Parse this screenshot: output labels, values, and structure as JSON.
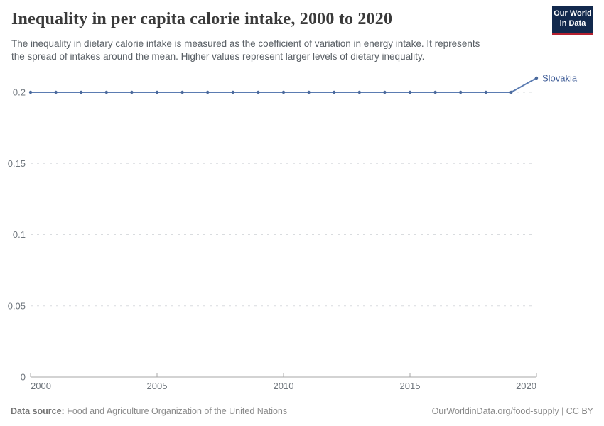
{
  "header": {
    "title": "Inequality in per capita calorie intake, 2000 to 2020",
    "subtitle_line1": "The inequality in dietary calorie intake is measured as the coefficient of variation in energy intake. It represents",
    "subtitle_line2": "the spread of intakes around the mean. Higher values represent larger levels of dietary inequality.",
    "logo": {
      "line1": "Our World",
      "line2": "in Data",
      "bg_color": "#12294d",
      "stripe_color": "#b52130"
    }
  },
  "chart_data": {
    "type": "line",
    "title": "Inequality in per capita calorie intake, 2000 to 2020",
    "xlabel": "",
    "ylabel": "",
    "xlim": [
      2000,
      2020
    ],
    "ylim": [
      0,
      0.2
    ],
    "grid": "horizontal-dashed",
    "legend_position": "end-of-line-label",
    "x_ticks": [
      2000,
      2005,
      2010,
      2015,
      2020
    ],
    "x_tick_labels": [
      "2000",
      "2005",
      "2010",
      "2015",
      "2020"
    ],
    "y_ticks": [
      0,
      0.05,
      0.1,
      0.15,
      0.2
    ],
    "y_tick_labels": [
      "0",
      "0.05",
      "0.1",
      "0.15",
      "0.2"
    ],
    "series": [
      {
        "name": "Slovakia",
        "x": [
          2000,
          2001,
          2002,
          2003,
          2004,
          2005,
          2006,
          2007,
          2008,
          2009,
          2010,
          2011,
          2012,
          2013,
          2014,
          2015,
          2016,
          2017,
          2018,
          2019,
          2020
        ],
        "values": [
          0.2,
          0.2,
          0.2,
          0.2,
          0.2,
          0.2,
          0.2,
          0.2,
          0.2,
          0.2,
          0.2,
          0.2,
          0.2,
          0.2,
          0.2,
          0.2,
          0.2,
          0.2,
          0.2,
          0.2,
          0.21
        ],
        "line_color": "#5b7cb2",
        "marker_color": "#4c6a9c",
        "label_color": "#3d5b96"
      }
    ],
    "colors": {
      "grid": "#d9dcdf",
      "axis": "#a7a7a7",
      "tick_text": "#6e757c"
    }
  },
  "footer": {
    "source_label": "Data source:",
    "source_text": "Food and Agriculture Organization of the United Nations",
    "right_text": "OurWorldinData.org/food-supply | CC BY"
  }
}
